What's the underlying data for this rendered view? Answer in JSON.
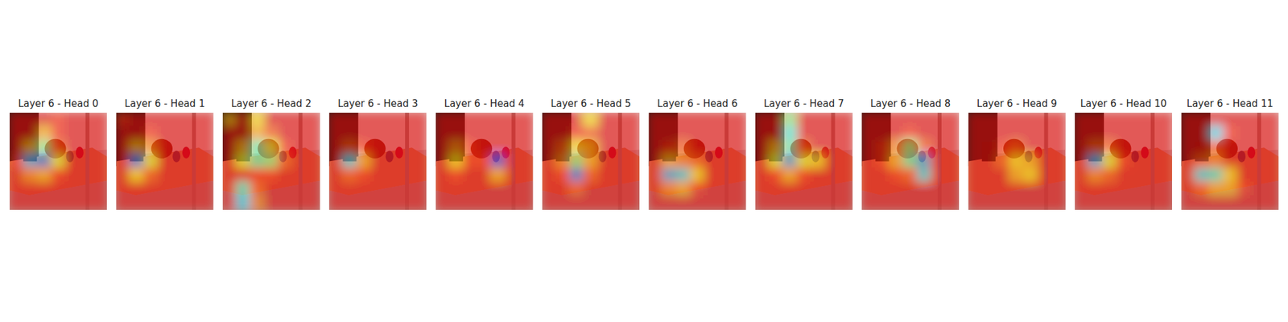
{
  "chart_data": [
    {
      "type": "heatmap",
      "title": "Layer 6 - Head 0",
      "zlim": [
        0,
        1
      ],
      "cells": [
        [
          0.9,
          0.9,
          0.9,
          0.85,
          0.9,
          0.9,
          0.9
        ],
        [
          0.9,
          0.9,
          0.7,
          0.85,
          0.9,
          0.9,
          0.9
        ],
        [
          0.9,
          0.7,
          0.5,
          0.8,
          0.9,
          0.9,
          0.9
        ],
        [
          0.85,
          0.3,
          0.25,
          0.6,
          0.9,
          0.9,
          0.9
        ],
        [
          0.9,
          0.75,
          0.7,
          0.85,
          0.9,
          0.9,
          0.9
        ],
        [
          0.9,
          0.9,
          0.9,
          0.9,
          0.9,
          0.9,
          0.9
        ],
        [
          0.9,
          0.9,
          0.9,
          0.9,
          0.9,
          0.9,
          0.9
        ]
      ]
    },
    {
      "type": "heatmap",
      "title": "Layer 6 - Head 1",
      "zlim": [
        0,
        1
      ],
      "cells": [
        [
          0.85,
          0.9,
          0.9,
          0.9,
          0.9,
          0.9,
          0.9
        ],
        [
          0.9,
          0.9,
          0.85,
          0.9,
          0.9,
          0.9,
          0.9
        ],
        [
          0.9,
          0.7,
          0.75,
          0.9,
          0.9,
          0.9,
          0.9
        ],
        [
          0.9,
          0.25,
          0.6,
          0.9,
          0.9,
          0.9,
          0.9
        ],
        [
          0.9,
          0.65,
          0.8,
          0.9,
          0.9,
          0.9,
          0.9
        ],
        [
          0.9,
          0.9,
          0.9,
          0.9,
          0.9,
          0.9,
          0.9
        ],
        [
          0.9,
          0.9,
          0.9,
          0.9,
          0.9,
          0.9,
          0.9
        ]
      ]
    },
    {
      "type": "heatmap",
      "title": "Layer 6 - Head 2",
      "zlim": [
        0,
        1
      ],
      "cells": [
        [
          0.7,
          0.9,
          0.65,
          0.9,
          0.9,
          0.9,
          0.9
        ],
        [
          0.9,
          0.9,
          0.7,
          0.8,
          0.9,
          0.9,
          0.9
        ],
        [
          0.9,
          0.7,
          0.45,
          0.6,
          0.85,
          0.9,
          0.9
        ],
        [
          0.9,
          0.6,
          0.45,
          0.5,
          0.8,
          0.9,
          0.9
        ],
        [
          0.9,
          0.9,
          0.85,
          0.85,
          0.9,
          0.9,
          0.9
        ],
        [
          0.9,
          0.4,
          0.8,
          0.9,
          0.9,
          0.9,
          0.9
        ],
        [
          0.9,
          0.35,
          0.75,
          0.9,
          0.9,
          0.9,
          0.9
        ]
      ]
    },
    {
      "type": "heatmap",
      "title": "Layer 6 - Head 3",
      "zlim": [
        0,
        1
      ],
      "cells": [
        [
          0.9,
          0.9,
          0.9,
          0.9,
          0.9,
          0.9,
          0.9
        ],
        [
          0.9,
          0.9,
          0.9,
          0.9,
          0.9,
          0.9,
          0.9
        ],
        [
          0.9,
          0.8,
          0.85,
          0.9,
          0.9,
          0.9,
          0.9
        ],
        [
          0.9,
          0.35,
          0.7,
          0.9,
          0.9,
          0.9,
          0.9
        ],
        [
          0.9,
          0.8,
          0.85,
          0.9,
          0.9,
          0.9,
          0.9
        ],
        [
          0.9,
          0.9,
          0.9,
          0.9,
          0.9,
          0.9,
          0.9
        ],
        [
          0.9,
          0.9,
          0.9,
          0.9,
          0.9,
          0.9,
          0.9
        ]
      ]
    },
    {
      "type": "heatmap",
      "title": "Layer 6 - Head 4",
      "zlim": [
        0,
        1
      ],
      "cells": [
        [
          0.9,
          0.9,
          0.9,
          0.9,
          0.9,
          0.9,
          0.9
        ],
        [
          0.9,
          0.9,
          0.9,
          0.9,
          0.9,
          0.9,
          0.9
        ],
        [
          0.9,
          0.75,
          0.85,
          0.9,
          0.9,
          0.9,
          0.9
        ],
        [
          0.9,
          0.65,
          0.85,
          0.85,
          0.2,
          0.9,
          0.9
        ],
        [
          0.9,
          0.85,
          0.9,
          0.9,
          0.7,
          0.9,
          0.9
        ],
        [
          0.9,
          0.9,
          0.9,
          0.9,
          0.9,
          0.9,
          0.9
        ],
        [
          0.9,
          0.9,
          0.9,
          0.9,
          0.9,
          0.9,
          0.9
        ]
      ]
    },
    {
      "type": "heatmap",
      "title": "Layer 6 - Head 5",
      "zlim": [
        0,
        1
      ],
      "cells": [
        [
          0.9,
          0.9,
          0.9,
          0.65,
          0.9,
          0.9,
          0.9
        ],
        [
          0.9,
          0.9,
          0.85,
          0.8,
          0.9,
          0.9,
          0.9
        ],
        [
          0.9,
          0.8,
          0.65,
          0.7,
          0.9,
          0.9,
          0.9
        ],
        [
          0.9,
          0.75,
          0.5,
          0.7,
          0.9,
          0.9,
          0.9
        ],
        [
          0.9,
          0.85,
          0.25,
          0.8,
          0.9,
          0.9,
          0.9
        ],
        [
          0.9,
          0.9,
          0.8,
          0.9,
          0.9,
          0.9,
          0.9
        ],
        [
          0.9,
          0.9,
          0.9,
          0.9,
          0.9,
          0.9,
          0.9
        ]
      ]
    },
    {
      "type": "heatmap",
      "title": "Layer 6 - Head 6",
      "zlim": [
        0,
        1
      ],
      "cells": [
        [
          0.9,
          0.9,
          0.9,
          0.9,
          0.9,
          0.9,
          0.9
        ],
        [
          0.9,
          0.9,
          0.9,
          0.9,
          0.9,
          0.9,
          0.9
        ],
        [
          0.9,
          0.85,
          0.8,
          0.9,
          0.9,
          0.9,
          0.9
        ],
        [
          0.9,
          0.7,
          0.75,
          0.8,
          0.9,
          0.9,
          0.9
        ],
        [
          0.9,
          0.3,
          0.35,
          0.65,
          0.9,
          0.9,
          0.9
        ],
        [
          0.9,
          0.75,
          0.7,
          0.85,
          0.9,
          0.9,
          0.9
        ],
        [
          0.9,
          0.9,
          0.9,
          0.9,
          0.9,
          0.9,
          0.9
        ]
      ]
    },
    {
      "type": "heatmap",
      "title": "Layer 6 - Head 7",
      "zlim": [
        0,
        1
      ],
      "cells": [
        [
          0.9,
          0.9,
          0.5,
          0.9,
          0.9,
          0.9,
          0.9
        ],
        [
          0.9,
          0.9,
          0.4,
          0.9,
          0.9,
          0.9,
          0.9
        ],
        [
          0.9,
          0.7,
          0.45,
          0.8,
          0.9,
          0.9,
          0.9
        ],
        [
          0.9,
          0.6,
          0.3,
          0.6,
          0.65,
          0.9,
          0.9
        ],
        [
          0.9,
          0.85,
          0.7,
          0.85,
          0.9,
          0.9,
          0.9
        ],
        [
          0.9,
          0.9,
          0.9,
          0.9,
          0.9,
          0.9,
          0.9
        ],
        [
          0.9,
          0.9,
          0.9,
          0.9,
          0.9,
          0.9,
          0.9
        ]
      ]
    },
    {
      "type": "heatmap",
      "title": "Layer 6 - Head 8",
      "zlim": [
        0,
        1
      ],
      "cells": [
        [
          0.9,
          0.9,
          0.9,
          0.9,
          0.9,
          0.9,
          0.9
        ],
        [
          0.9,
          0.9,
          0.9,
          0.85,
          0.9,
          0.9,
          0.9
        ],
        [
          0.9,
          0.85,
          0.75,
          0.5,
          0.8,
          0.9,
          0.9
        ],
        [
          0.9,
          0.85,
          0.7,
          0.45,
          0.3,
          0.9,
          0.9
        ],
        [
          0.9,
          0.9,
          0.85,
          0.8,
          0.35,
          0.9,
          0.9
        ],
        [
          0.9,
          0.9,
          0.9,
          0.9,
          0.9,
          0.9,
          0.9
        ],
        [
          0.9,
          0.9,
          0.9,
          0.9,
          0.9,
          0.9,
          0.9
        ]
      ]
    },
    {
      "type": "heatmap",
      "title": "Layer 6 - Head 9",
      "zlim": [
        0,
        1
      ],
      "cells": [
        [
          0.9,
          0.9,
          0.9,
          0.9,
          0.9,
          0.9,
          0.9
        ],
        [
          0.9,
          0.9,
          0.9,
          0.9,
          0.9,
          0.9,
          0.9
        ],
        [
          0.9,
          0.9,
          0.85,
          0.8,
          0.9,
          0.9,
          0.9
        ],
        [
          0.9,
          0.9,
          0.8,
          0.65,
          0.7,
          0.9,
          0.9
        ],
        [
          0.9,
          0.9,
          0.9,
          0.7,
          0.65,
          0.9,
          0.9
        ],
        [
          0.9,
          0.9,
          0.9,
          0.9,
          0.9,
          0.9,
          0.9
        ],
        [
          0.9,
          0.9,
          0.9,
          0.9,
          0.9,
          0.9,
          0.9
        ]
      ]
    },
    {
      "type": "heatmap",
      "title": "Layer 6 - Head 10",
      "zlim": [
        0,
        1
      ],
      "cells": [
        [
          0.9,
          0.9,
          0.9,
          0.9,
          0.9,
          0.9,
          0.9
        ],
        [
          0.9,
          0.9,
          0.9,
          0.9,
          0.9,
          0.9,
          0.9
        ],
        [
          0.9,
          0.8,
          0.8,
          0.9,
          0.9,
          0.9,
          0.9
        ],
        [
          0.9,
          0.3,
          0.6,
          0.85,
          0.9,
          0.9,
          0.9
        ],
        [
          0.9,
          0.75,
          0.8,
          0.9,
          0.9,
          0.9,
          0.9
        ],
        [
          0.9,
          0.9,
          0.9,
          0.9,
          0.9,
          0.9,
          0.9
        ],
        [
          0.9,
          0.9,
          0.9,
          0.9,
          0.9,
          0.9,
          0.9
        ]
      ]
    },
    {
      "type": "heatmap",
      "title": "Layer 6 - Head 11",
      "zlim": [
        0,
        1
      ],
      "cells": [
        [
          0.9,
          0.9,
          0.9,
          0.9,
          0.9,
          0.9,
          0.9
        ],
        [
          0.9,
          0.9,
          0.35,
          0.85,
          0.9,
          0.9,
          0.9
        ],
        [
          0.9,
          0.9,
          0.8,
          0.9,
          0.9,
          0.9,
          0.9
        ],
        [
          0.9,
          0.8,
          0.75,
          0.9,
          0.9,
          0.9,
          0.9
        ],
        [
          0.9,
          0.35,
          0.4,
          0.65,
          0.9,
          0.9,
          0.9
        ],
        [
          0.9,
          0.8,
          0.7,
          0.7,
          0.85,
          0.9,
          0.9
        ],
        [
          0.9,
          0.9,
          0.9,
          0.9,
          0.9,
          0.9,
          0.9
        ]
      ]
    }
  ]
}
